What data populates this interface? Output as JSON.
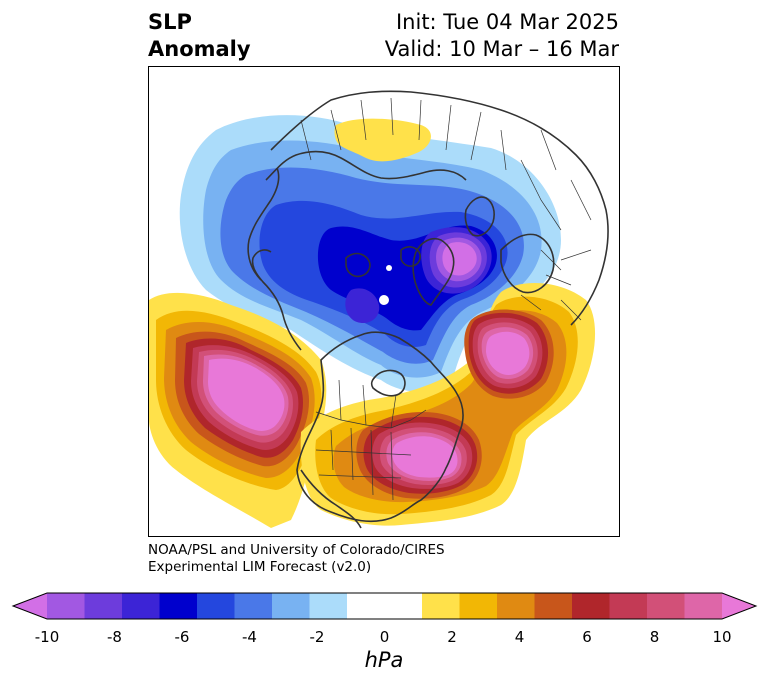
{
  "title": {
    "left_line1": "SLP",
    "left_line2": "Anomaly",
    "right_line1": "Init: Tue 04 Mar 2025",
    "right_line2": "Valid: 10 Mar – 16 Mar"
  },
  "credit": {
    "line1": "NOAA/PSL and University of Colorado/CIRES",
    "line2": "Experimental LIM Forecast (v2.0)"
  },
  "colorbar": {
    "unit": "hPa",
    "tick_labels": [
      "-10",
      "-8",
      "-6",
      "-4",
      "-2",
      "0",
      "2",
      "4",
      "6",
      "8",
      "10"
    ],
    "colors": [
      "#d26fe6",
      "#a258e2",
      "#6d3cdc",
      "#3c24d6",
      "#0000cd",
      "#2447de",
      "#4a78e8",
      "#78b2f2",
      "#abdcfa",
      "#ffffff",
      "#ffffff",
      "#ffe14a",
      "#f2b705",
      "#e08a12",
      "#c8561b",
      "#b0262b",
      "#c33a55",
      "#d25078",
      "#de66a8",
      "#e878d8"
    ]
  },
  "colors": {
    "land_outline": "#333333",
    "positive_core": "#e878d8",
    "negative_core": "#0000cd"
  }
}
